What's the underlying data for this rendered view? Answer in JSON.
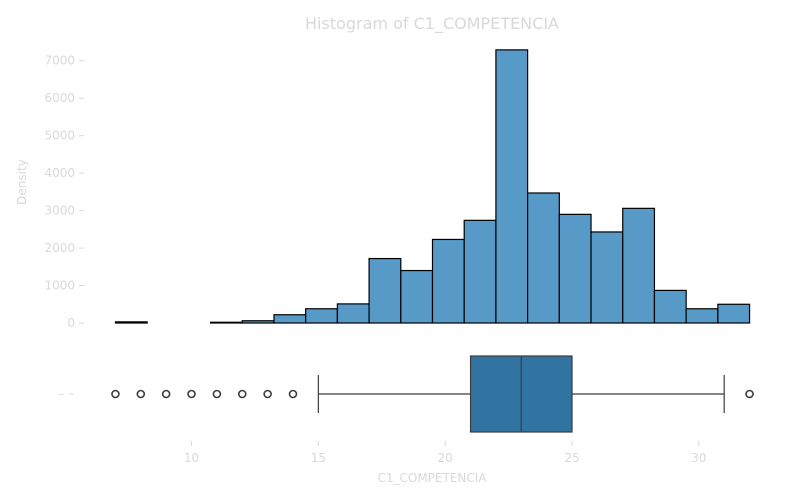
{
  "chart_data": [
    {
      "type": "histogram",
      "title": "Histogram of C1_COMPETENCIA",
      "ylabel": "Density",
      "xlim": [
        5.8,
        33.2
      ],
      "ylim": [
        0,
        7500
      ],
      "yticks": [
        0,
        1000,
        2000,
        3000,
        4000,
        5000,
        6000,
        7000
      ],
      "bins": [
        {
          "start": 7.0,
          "end": 8.25,
          "count": 30
        },
        {
          "start": 8.25,
          "end": 9.5,
          "count": 0
        },
        {
          "start": 9.5,
          "end": 10.75,
          "count": 0
        },
        {
          "start": 10.75,
          "end": 12.0,
          "count": 20
        },
        {
          "start": 12.0,
          "end": 13.25,
          "count": 60
        },
        {
          "start": 13.25,
          "end": 14.5,
          "count": 220
        },
        {
          "start": 14.5,
          "end": 15.75,
          "count": 380
        },
        {
          "start": 15.75,
          "end": 17.0,
          "count": 510
        },
        {
          "start": 17.0,
          "end": 18.25,
          "count": 1720
        },
        {
          "start": 18.25,
          "end": 19.5,
          "count": 1400
        },
        {
          "start": 19.5,
          "end": 20.75,
          "count": 2230
        },
        {
          "start": 20.75,
          "end": 22.0,
          "count": 2740
        },
        {
          "start": 22.0,
          "end": 23.25,
          "count": 7290
        },
        {
          "start": 23.25,
          "end": 24.5,
          "count": 3470
        },
        {
          "start": 24.5,
          "end": 25.75,
          "count": 2900
        },
        {
          "start": 25.75,
          "end": 27.0,
          "count": 2430
        },
        {
          "start": 27.0,
          "end": 28.25,
          "count": 3060
        },
        {
          "start": 28.25,
          "end": 29.5,
          "count": 870
        },
        {
          "start": 29.5,
          "end": 30.75,
          "count": 380
        },
        {
          "start": 30.75,
          "end": 32.0,
          "count": 500
        }
      ]
    },
    {
      "type": "boxplot",
      "xlabel": "C1_COMPETENCIA",
      "xticks": [
        10,
        15,
        20,
        25,
        30
      ],
      "ytick_label": "–",
      "q1": 21,
      "median": 23,
      "q3": 25,
      "whisker_low": 15,
      "whisker_high": 31,
      "outliers": [
        7,
        8,
        9,
        10,
        11,
        12,
        13,
        14,
        32
      ]
    }
  ]
}
